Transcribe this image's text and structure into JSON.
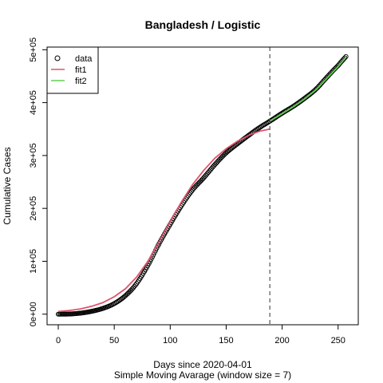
{
  "chart_data": {
    "type": "scatter",
    "title": "Bangladesh / Logistic",
    "xlabel": "Days since 2020-04-01",
    "xlabel2": "Simple Moving Avarage (window size = 7)",
    "ylabel": "Cumulative Cases",
    "xlim": [
      -10,
      268
    ],
    "ylim": [
      -20000,
      505000
    ],
    "x_ticks": [
      0,
      50,
      100,
      150,
      200,
      250
    ],
    "y_ticks": [
      0,
      100000,
      200000,
      300000,
      400000,
      500000
    ],
    "y_tick_labels": [
      "0e+00",
      "1e+05",
      "2e+05",
      "3e+05",
      "4e+05",
      "5e+05"
    ],
    "vline_x": 189,
    "legend_position": "top-left",
    "grid": false,
    "data_anchors": [
      [
        0,
        0
      ],
      [
        10,
        300
      ],
      [
        20,
        2000
      ],
      [
        30,
        5500
      ],
      [
        40,
        11000
      ],
      [
        50,
        20000
      ],
      [
        60,
        35000
      ],
      [
        70,
        58000
      ],
      [
        80,
        92000
      ],
      [
        90,
        133000
      ],
      [
        100,
        170000
      ],
      [
        110,
        205000
      ],
      [
        120,
        235000
      ],
      [
        130,
        258000
      ],
      [
        140,
        283000
      ],
      [
        150,
        305000
      ],
      [
        160,
        322000
      ],
      [
        170,
        338000
      ],
      [
        180,
        353000
      ],
      [
        189,
        365000
      ],
      [
        200,
        380000
      ],
      [
        210,
        393000
      ],
      [
        220,
        408000
      ],
      [
        230,
        425000
      ],
      [
        240,
        448000
      ],
      [
        250,
        470000
      ],
      [
        257,
        487000
      ]
    ],
    "data_range": [
      0,
      257
    ],
    "series": [
      {
        "name": "data",
        "color": "#000000",
        "marker": "circle"
      },
      {
        "name": "fit1",
        "color": "#DF536B",
        "x": [
          0,
          10,
          20,
          30,
          40,
          50,
          60,
          70,
          80,
          90,
          100,
          110,
          120,
          130,
          140,
          150,
          160,
          170,
          180,
          189
        ],
        "y": [
          5000,
          7000,
          10000,
          15000,
          22000,
          33000,
          48000,
          70000,
          100000,
          137000,
          175000,
          212000,
          245000,
          272000,
          295000,
          313000,
          327000,
          338000,
          346000,
          350000
        ]
      },
      {
        "name": "fit2",
        "color": "#61D04F",
        "x": [
          189,
          200,
          210,
          220,
          230,
          240,
          250,
          257
        ],
        "y": [
          365000,
          379000,
          392000,
          407000,
          424000,
          446000,
          468000,
          486000
        ]
      }
    ]
  }
}
